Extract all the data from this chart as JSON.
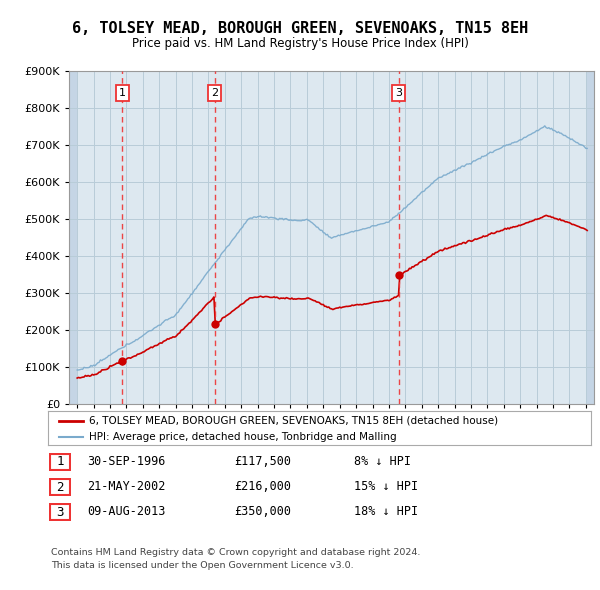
{
  "title": "6, TOLSEY MEAD, BOROUGH GREEN, SEVENOAKS, TN15 8EH",
  "subtitle": "Price paid vs. HM Land Registry's House Price Index (HPI)",
  "red_line_label": "6, TOLSEY MEAD, BOROUGH GREEN, SEVENOAKS, TN15 8EH (detached house)",
  "blue_line_label": "HPI: Average price, detached house, Tonbridge and Malling",
  "footer1": "Contains HM Land Registry data © Crown copyright and database right 2024.",
  "footer2": "This data is licensed under the Open Government Licence v3.0.",
  "sales": [
    {
      "num": 1,
      "date": "30-SEP-1996",
      "price": 117500,
      "pct": "8% ↓ HPI",
      "year": 1996.75
    },
    {
      "num": 2,
      "date": "21-MAY-2002",
      "price": 216000,
      "pct": "15% ↓ HPI",
      "year": 2002.38
    },
    {
      "num": 3,
      "date": "09-AUG-2013",
      "price": 350000,
      "pct": "18% ↓ HPI",
      "year": 2013.6
    }
  ],
  "ylim": [
    0,
    900000
  ],
  "xlim": [
    1993.5,
    2025.5
  ],
  "plot_bg_color": "#dde8f0",
  "hatch_color": "#c5d5e5",
  "grid_color": "#b8ccd8",
  "red_color": "#cc0000",
  "blue_color": "#7aaacc",
  "dashed_red_color": "#ee3333",
  "title_fontsize": 11,
  "subtitle_fontsize": 9
}
